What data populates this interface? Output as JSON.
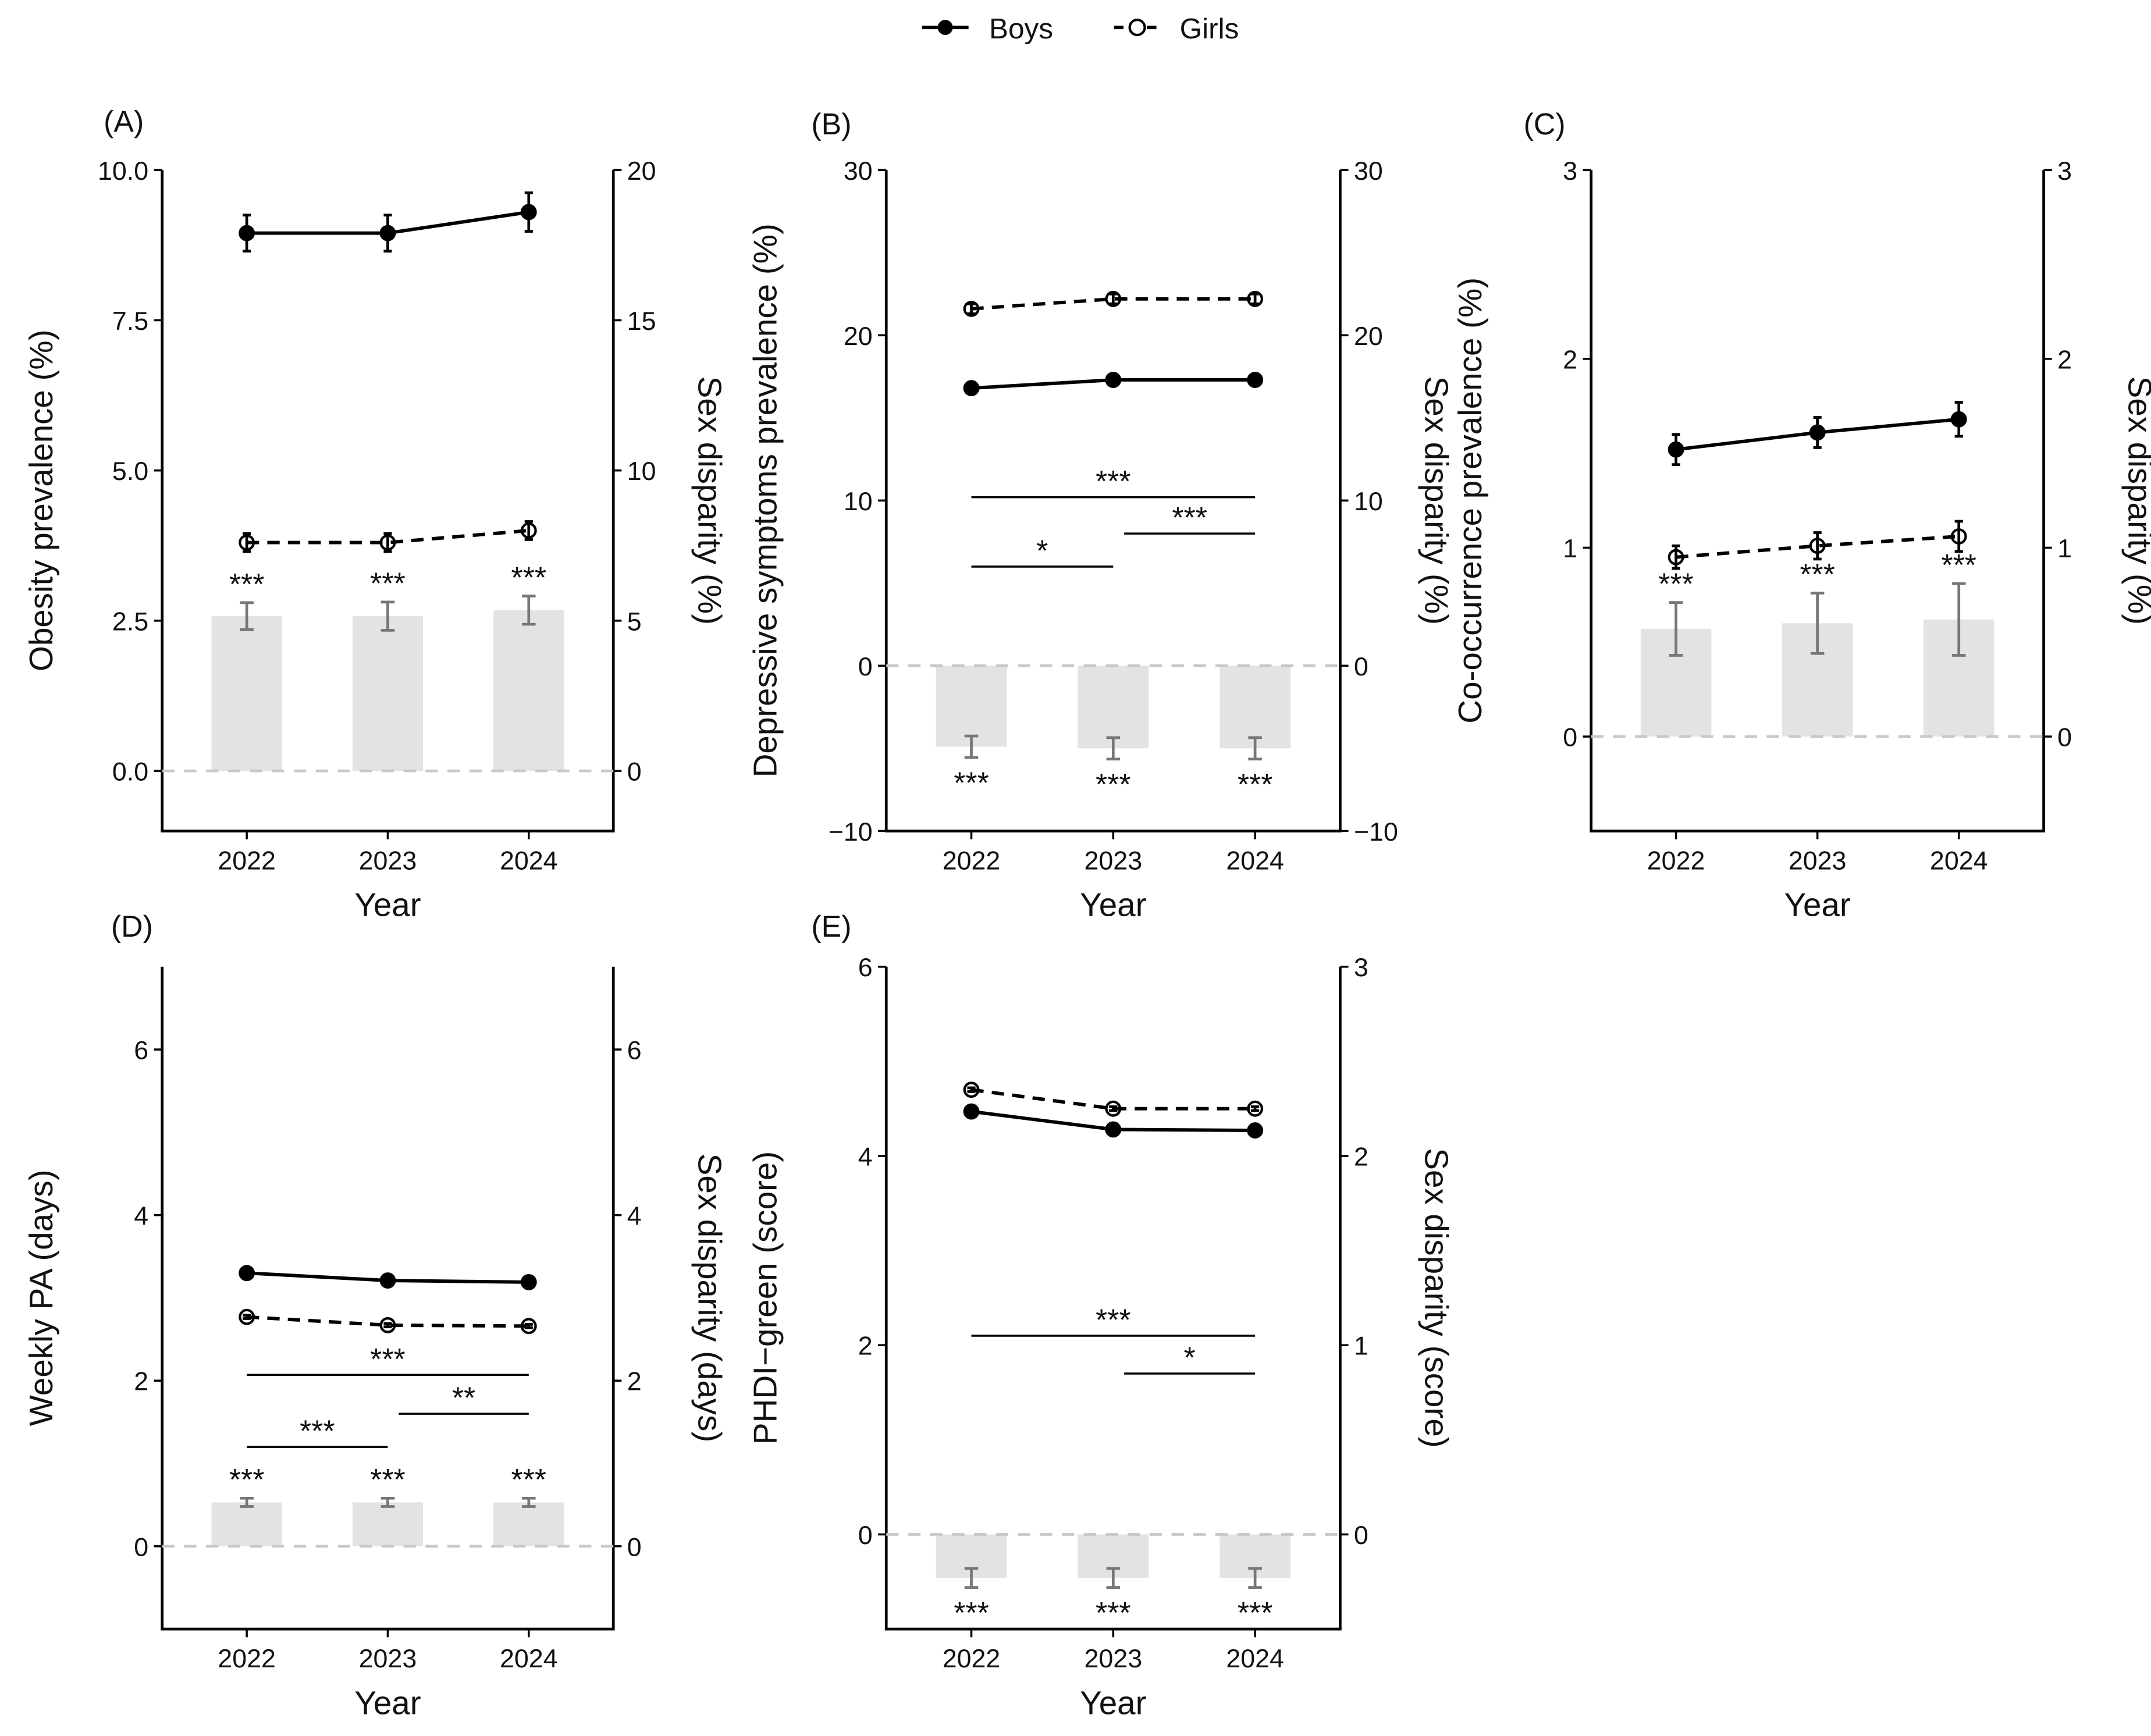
{
  "legend": {
    "boys": "Boys",
    "girls": "Girls"
  },
  "colors": {
    "line": "#000000",
    "bar": "#e3e3e3",
    "bar_error": "#777777",
    "zero_line": "#c8c8c8"
  },
  "chart_data": [
    {
      "panel": "(A)",
      "type": "line+bar",
      "categories": [
        "2022",
        "2023",
        "2024"
      ],
      "xlabel": "Year",
      "ylabel": "Obesity prevalence (%)",
      "y2label": "Sex disparity (%)",
      "ylim": [
        -1,
        10
      ],
      "y2lim": [
        -2,
        20
      ],
      "yticks": [
        0,
        2.5,
        5,
        7.5,
        10
      ],
      "yticklabels": [
        "0.0",
        "2.5",
        "5.0",
        "7.5",
        "10.0"
      ],
      "y2ticks": [
        0,
        5,
        10,
        15,
        20
      ],
      "y2ticklabels": [
        "0",
        "5",
        "10",
        "15",
        "20"
      ],
      "series": [
        {
          "name": "Boys",
          "values": [
            8.95,
            8.95,
            9.3
          ],
          "err": [
            0.3,
            0.3,
            0.32
          ]
        },
        {
          "name": "Girls",
          "values": [
            3.8,
            3.8,
            4.0
          ],
          "err": [
            0.15,
            0.15,
            0.15
          ]
        }
      ],
      "disparity": {
        "values": [
          5.15,
          5.15,
          5.35
        ],
        "err": [
          0.45,
          0.47,
          0.47
        ],
        "labels": [
          "***",
          "***",
          "***"
        ]
      },
      "comparisons": []
    },
    {
      "panel": "(B)",
      "type": "line+bar",
      "categories": [
        "2022",
        "2023",
        "2024"
      ],
      "xlabel": "Year",
      "ylabel": "Depressive symptoms prevalence (%)",
      "y2label": "Sex disparity (%)",
      "ylim": [
        -10,
        30
      ],
      "y2lim": [
        -10,
        30
      ],
      "yticks": [
        -10,
        0,
        10,
        20,
        30
      ],
      "yticklabels": [
        "−10",
        "0",
        "10",
        "20",
        "30"
      ],
      "y2ticks": [
        -10,
        0,
        10,
        20,
        30
      ],
      "y2ticklabels": [
        "−10",
        "0",
        "10",
        "20",
        "30"
      ],
      "series": [
        {
          "name": "Boys",
          "values": [
            16.8,
            17.3,
            17.3
          ],
          "err": [
            0.2,
            0.2,
            0.2
          ]
        },
        {
          "name": "Girls",
          "values": [
            21.6,
            22.2,
            22.2
          ],
          "err": [
            0.3,
            0.3,
            0.3
          ]
        }
      ],
      "disparity": {
        "values": [
          -4.9,
          -5.0,
          -5.0
        ],
        "err": [
          0.65,
          0.65,
          0.65
        ],
        "labels": [
          "***",
          "***",
          "***"
        ]
      },
      "comparisons": [
        {
          "from": "2022",
          "to": "2024",
          "y": 10.2,
          "label": "***"
        },
        {
          "from": "2023",
          "to": "2024",
          "y": 8.0,
          "label": "***"
        },
        {
          "from": "2022",
          "to": "2023",
          "y": 6.0,
          "label": "*"
        }
      ]
    },
    {
      "panel": "(C)",
      "type": "line+bar",
      "categories": [
        "2022",
        "2023",
        "2024"
      ],
      "xlabel": "Year",
      "ylabel": "Co-occurrence prevalence (%)",
      "y2label": "Sex disparity (%)",
      "ylim": [
        -0.5,
        3
      ],
      "y2lim": [
        -0.5,
        3
      ],
      "yticks": [
        0,
        1,
        2,
        3
      ],
      "yticklabels": [
        "0",
        "1",
        "2",
        "3"
      ],
      "y2ticks": [
        0,
        1,
        2,
        3
      ],
      "y2ticklabels": [
        "0",
        "1",
        "2",
        "3"
      ],
      "series": [
        {
          "name": "Boys",
          "values": [
            1.52,
            1.61,
            1.68
          ],
          "err": [
            0.08,
            0.08,
            0.09
          ]
        },
        {
          "name": "Girls",
          "values": [
            0.95,
            1.01,
            1.06
          ],
          "err": [
            0.06,
            0.07,
            0.08
          ]
        }
      ],
      "disparity": {
        "values": [
          0.57,
          0.6,
          0.62
        ],
        "err": [
          0.14,
          0.16,
          0.19
        ],
        "labels": [
          "***",
          "***",
          "***"
        ]
      },
      "comparisons": []
    },
    {
      "panel": "(D)",
      "type": "line+bar",
      "categories": [
        "2022",
        "2023",
        "2024"
      ],
      "xlabel": "Year",
      "ylabel": "Weekly PA (days)",
      "y2label": "Sex disparity (days)",
      "ylim": [
        -1,
        7
      ],
      "y2lim": [
        -1,
        7
      ],
      "yticks": [
        0,
        2,
        4,
        6
      ],
      "yticklabels": [
        "0",
        "2",
        "4",
        "6"
      ],
      "y2ticks": [
        0,
        2,
        4,
        6
      ],
      "y2ticklabels": [
        "0",
        "2",
        "4",
        "6"
      ],
      "series": [
        {
          "name": "Boys",
          "values": [
            3.3,
            3.21,
            3.19
          ],
          "err": [
            0.02,
            0.02,
            0.02
          ]
        },
        {
          "name": "Girls",
          "values": [
            2.77,
            2.67,
            2.66
          ],
          "err": [
            0.02,
            0.02,
            0.02
          ]
        }
      ],
      "disparity": {
        "values": [
          0.53,
          0.53,
          0.53
        ],
        "err": [
          0.05,
          0.05,
          0.05
        ],
        "labels": [
          "***",
          "***",
          "***"
        ]
      },
      "comparisons": [
        {
          "from": "2022",
          "to": "2024",
          "y": 2.07,
          "label": "***"
        },
        {
          "from": "2023",
          "to": "2024",
          "y": 1.6,
          "label": "**"
        },
        {
          "from": "2022",
          "to": "2023",
          "y": 1.2,
          "label": "***"
        }
      ]
    },
    {
      "panel": "(E)",
      "type": "line+bar",
      "categories": [
        "2022",
        "2023",
        "2024"
      ],
      "xlabel": "Year",
      "ylabel": "PHDI−green (score)",
      "y2label": "Sex disparity (score)",
      "ylim": [
        -1,
        6
      ],
      "y2lim": [
        -0.5,
        3
      ],
      "yticks": [
        0,
        2,
        4,
        6
      ],
      "yticklabels": [
        "0",
        "2",
        "4",
        "6"
      ],
      "y2ticks": [
        0,
        1,
        2,
        3
      ],
      "y2ticklabels": [
        "0",
        "1",
        "2",
        "3"
      ],
      "series": [
        {
          "name": "Boys",
          "values": [
            4.47,
            4.28,
            4.27
          ],
          "err": [
            0.02,
            0.02,
            0.02
          ]
        },
        {
          "name": "Girls",
          "values": [
            4.7,
            4.5,
            4.5
          ],
          "err": [
            0.02,
            0.02,
            0.02
          ]
        }
      ],
      "disparity": {
        "values": [
          -0.23,
          -0.23,
          -0.23
        ],
        "err": [
          0.05,
          0.05,
          0.05
        ],
        "labels": [
          "***",
          "***",
          "***"
        ]
      },
      "comparisons": [
        {
          "from": "2022",
          "to": "2024",
          "y": 2.1,
          "label": "***"
        },
        {
          "from": "2023",
          "to": "2024",
          "y": 1.7,
          "label": "*"
        }
      ]
    }
  ]
}
